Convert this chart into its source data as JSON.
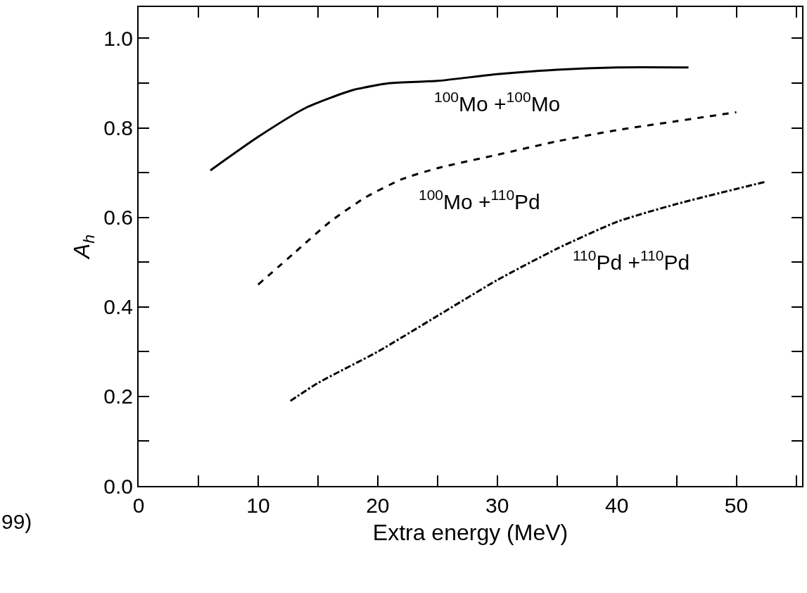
{
  "chart_data": {
    "type": "line",
    "xlabel": "Extra energy (MeV)",
    "ylabel": "A$_{h}$",
    "x": [
      6,
      10,
      14,
      18,
      21,
      25,
      30,
      35,
      40,
      46
    ],
    "series": [
      {
        "name": "$^{100}$Mo +$^{100}$Mo",
        "color": "#000000",
        "line_style": "solid",
        "values": [
          0.705,
          0.78,
          0.845,
          0.885,
          0.9,
          0.905,
          0.92,
          0.93,
          0.935,
          0.935
        ]
      },
      {
        "name": "$^{100}$Mo +$^{110}$Pd",
        "color": "#000000",
        "line_style": "dashed",
        "x": [
          10,
          13,
          16,
          19,
          22,
          25,
          30,
          35,
          40,
          45,
          50
        ],
        "values": [
          0.45,
          0.52,
          0.59,
          0.645,
          0.685,
          0.71,
          0.74,
          0.77,
          0.795,
          0.815,
          0.835
        ]
      },
      {
        "name": "$^{110}$Pd +$^{110}$Pd",
        "color": "#000000",
        "line_style": "dashdot",
        "x": [
          12.7,
          15,
          20,
          25,
          30,
          35,
          40,
          45,
          52.5
        ],
        "values": [
          0.19,
          0.23,
          0.3,
          0.38,
          0.46,
          0.53,
          0.59,
          0.63,
          0.68
        ]
      }
    ],
    "xlim": [
      0,
      55.5
    ],
    "xticks": [
      0,
      {
        "value": 5,
        "label": null
      },
      10,
      {
        "value": 15,
        "label": null
      },
      20,
      {
        "value": 25,
        "label": null
      },
      30,
      {
        "value": 35,
        "label": null
      },
      40,
      {
        "value": 45,
        "label": null
      },
      50,
      {
        "value": 55,
        "label": null
      }
    ],
    "ylim": [
      0,
      1.07
    ],
    "yticks": [
      {
        "value": 0,
        "label": "0.0"
      },
      {
        "value": 0.1,
        "label": null
      },
      0.2,
      {
        "value": 0.3,
        "label": null
      },
      0.4,
      {
        "value": 0.5,
        "label": null
      },
      0.6,
      {
        "value": 0.7,
        "label": null
      },
      0.8,
      {
        "value": 0.9,
        "label": null
      },
      {
        "value": 1,
        "label": "1.0"
      }
    ],
    "grid": false,
    "legend": false,
    "marker": "none",
    "annotations": [
      "99)"
    ]
  }
}
